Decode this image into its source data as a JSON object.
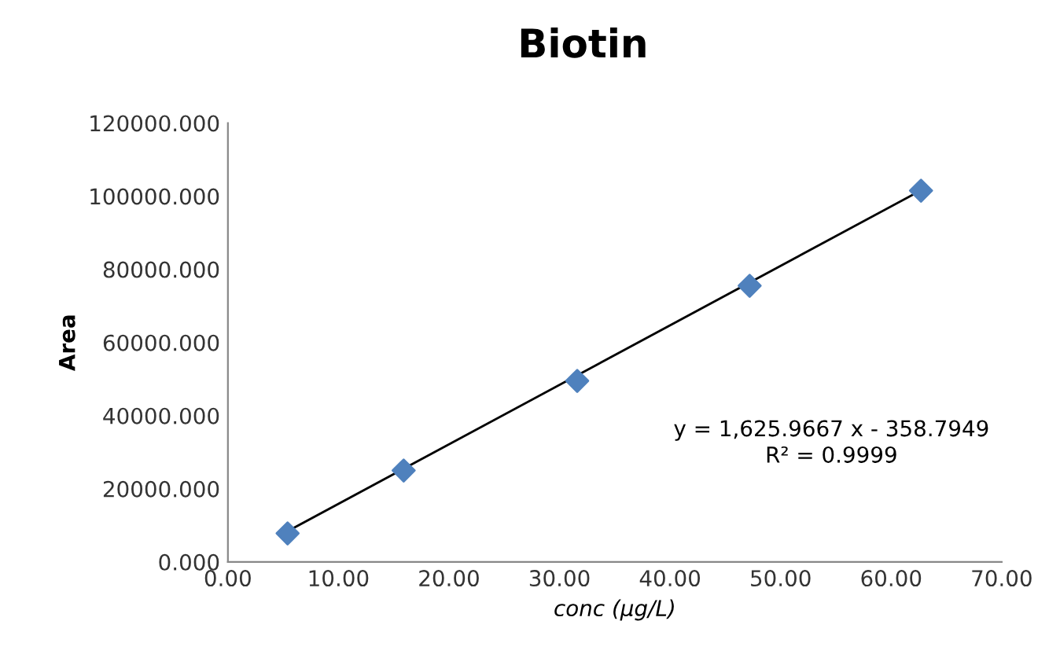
{
  "chart_data": {
    "type": "scatter",
    "title": "Biotin",
    "xlabel": "conc (µg/L)",
    "ylabel": "Area",
    "series": [
      {
        "color": "#4f81bd",
        "marker": "diamond",
        "x": [
          5.4,
          15.9,
          31.6,
          47.2,
          62.7
        ],
        "values": [
          7800,
          25000,
          49500,
          75500,
          101500
        ]
      },
      {
        "type": "line",
        "color": "#000000",
        "marker": "none",
        "line_style": "solid",
        "x": [
          5.4,
          62.7
        ],
        "values": [
          8400,
          101600
        ]
      }
    ],
    "xlim": [
      0,
      70
    ],
    "ylim": [
      0,
      120000
    ],
    "xticks": [
      {
        "value": 0,
        "label": "0.00"
      },
      {
        "value": 10,
        "label": "10.00"
      },
      {
        "value": 20,
        "label": "20.00"
      },
      {
        "value": 30,
        "label": "30.00"
      },
      {
        "value": 40,
        "label": "40.00"
      },
      {
        "value": 50,
        "label": "50.00"
      },
      {
        "value": 60,
        "label": "60.00"
      },
      {
        "value": 70,
        "label": "70.00"
      }
    ],
    "yticks": [
      {
        "value": 0,
        "label": "0.000"
      },
      {
        "value": 20000,
        "label": "20000.000"
      },
      {
        "value": 40000,
        "label": "40000.000"
      },
      {
        "value": 60000,
        "label": "60000.000"
      },
      {
        "value": 80000,
        "label": "80000.000"
      },
      {
        "value": 100000,
        "label": "100000.000"
      },
      {
        "value": 120000,
        "label": "120000.000"
      }
    ],
    "grid": false,
    "legend": false,
    "annotations": [
      "y = 1,625.9667 x - 358.7949",
      "R² = 0.9999"
    ]
  }
}
